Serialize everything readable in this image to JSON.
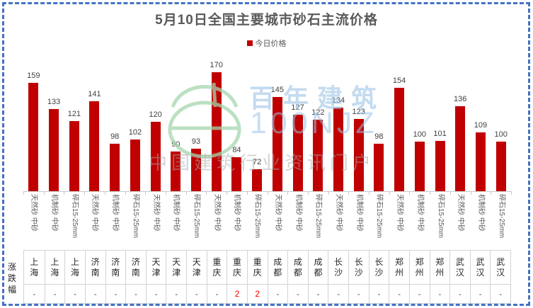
{
  "title": "5月10日全国主要城市砂石主流价格",
  "legend": {
    "label": "今日价格",
    "color": "#C00000"
  },
  "watermark": {
    "brand": "百年建筑",
    "brand_latin": "100NJZ",
    "tagline": "中国建筑行业资讯门户",
    "logo": "hundred-year-construction-logo"
  },
  "table": {
    "row_label": "涨跌幅"
  },
  "colors": {
    "bar": "#C00000",
    "title_text": "#595959",
    "value_label": "#404040",
    "axis": "#C9C9C9",
    "border_dashed": "#4472C4",
    "change_up": "#FF0000",
    "table_border": "#D3D3D3"
  },
  "chart_data": {
    "type": "bar",
    "title": "5月10日全国主要城市砂石主流价格",
    "legend_entries": [
      "今日价格"
    ],
    "legend_position": "top",
    "grid": false,
    "ylim": [
      50,
      175
    ],
    "xlabel": "",
    "ylabel": "",
    "categories": [
      "天然砂 中砂",
      "机制砂 中砂",
      "碎石15-25mm",
      "天然砂 中砂",
      "机制砂 中砂",
      "碎石15-25mm",
      "天然砂 中砂",
      "机制砂 中砂",
      "碎石15-25mm",
      "天然砂 中砂",
      "机制砂 中砂",
      "碎石15-25mm",
      "天然砂 中砂",
      "机制砂 中砂",
      "碎石15-25mm",
      "天然砂 中砂",
      "机制砂 中砂",
      "碎石15-25mm",
      "天然砂 中砂",
      "机制砂 中砂",
      "碎石15-25mm",
      "天然砂 中砂",
      "机制砂 中砂",
      "碎石15-25mm"
    ],
    "cities": [
      "上海",
      "上海",
      "上海",
      "济南",
      "济南",
      "济南",
      "天津",
      "天津",
      "天津",
      "重庆",
      "重庆",
      "重庆",
      "成都",
      "成都",
      "成都",
      "长沙",
      "长沙",
      "长沙",
      "郑州",
      "郑州",
      "郑州",
      "武汉",
      "武汉",
      "武汉"
    ],
    "series": [
      {
        "name": "今日价格",
        "values": [
          159,
          133,
          121,
          141,
          98,
          102,
          120,
          90,
          93,
          170,
          84,
          72,
          145,
          127,
          122,
          134,
          123,
          98,
          154,
          100,
          101,
          136,
          109,
          100
        ]
      }
    ],
    "changes_row_label": "涨跌幅",
    "changes": [
      "-",
      "-",
      "-",
      "-",
      "-",
      "-",
      "-",
      "-",
      "-",
      "-",
      "2",
      "2",
      "-",
      "-",
      "-",
      "-",
      "-",
      "-",
      "-",
      "-",
      "-",
      "-",
      "-",
      "-"
    ]
  }
}
